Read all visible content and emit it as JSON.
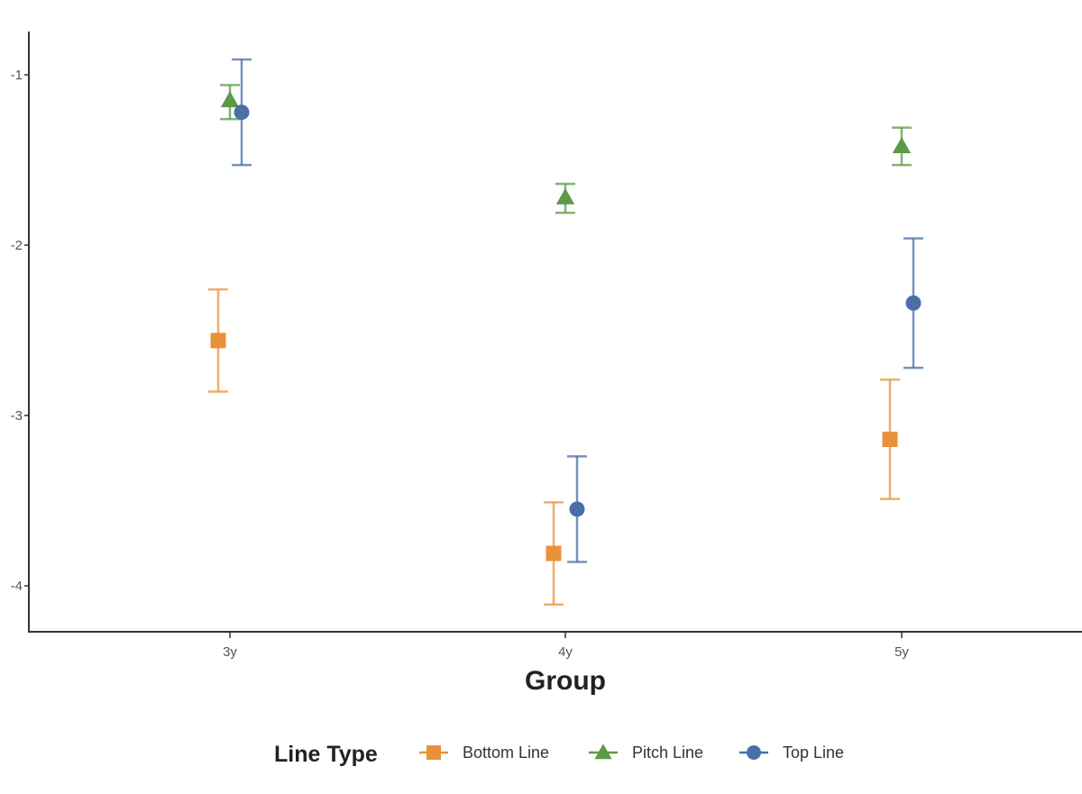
{
  "chart_data": {
    "type": "scatter",
    "title": "",
    "xlabel": "Group",
    "ylabel": "",
    "categories": [
      "3y",
      "4y",
      "5y"
    ],
    "yticks": [
      -1,
      -2,
      -3,
      -4
    ],
    "ytick_labels": [
      "-1",
      "-2",
      "-3",
      "-4"
    ],
    "ylim": [
      -4.26,
      -0.76
    ],
    "grid": false,
    "legend": {
      "title": "Line Type",
      "position": "bottom"
    },
    "series": [
      {
        "name": "Bottom Line",
        "color": "#E9913A",
        "shape": "square",
        "values": [
          -2.56,
          -3.81,
          -3.14
        ],
        "lower": [
          -2.86,
          -4.11,
          -3.49
        ],
        "upper": [
          -2.26,
          -3.51,
          -2.79
        ]
      },
      {
        "name": "Pitch Line",
        "color": "#5B9A47",
        "shape": "triangle",
        "values": [
          -1.15,
          -1.72,
          -1.42
        ],
        "lower": [
          -1.26,
          -1.81,
          -1.53
        ],
        "upper": [
          -1.06,
          -1.64,
          -1.31
        ]
      },
      {
        "name": "Top Line",
        "color": "#4A6EA8",
        "shape": "circle",
        "values": [
          -1.22,
          -3.55,
          -2.34
        ],
        "lower": [
          -1.53,
          -3.86,
          -2.72
        ],
        "upper": [
          -0.91,
          -3.24,
          -1.96
        ]
      }
    ]
  }
}
